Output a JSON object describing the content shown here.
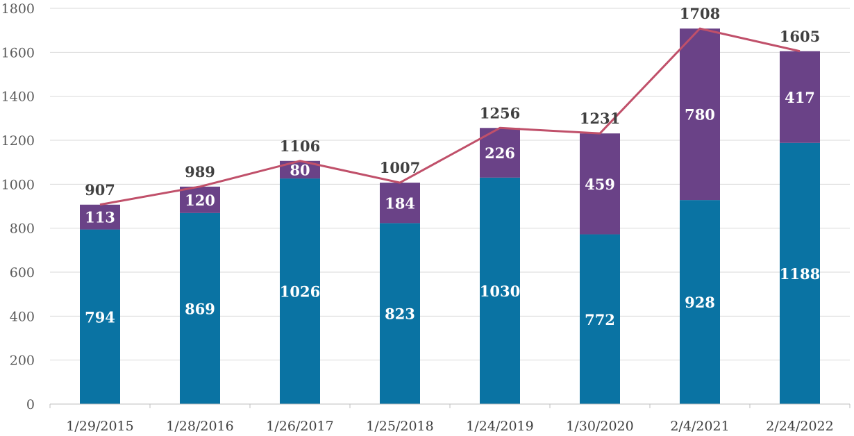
{
  "chart_data": {
    "type": "bar",
    "stacked": true,
    "title": "",
    "xlabel": "",
    "ylabel": "",
    "ylim": [
      0,
      1800
    ],
    "yticks": [
      0,
      200,
      400,
      600,
      800,
      1000,
      1200,
      1400,
      1600,
      1800
    ],
    "grid": true,
    "categories": [
      "1/29/2015",
      "1/28/2016",
      "1/26/2017",
      "1/25/2018",
      "1/24/2019",
      "1/30/2020",
      "2/4/2021",
      "2/24/2022"
    ],
    "series": [
      {
        "name": "Series 1",
        "type": "bar",
        "color": "#0a73a3",
        "values": [
          794,
          869,
          1026,
          823,
          1030,
          772,
          928,
          1188
        ]
      },
      {
        "name": "Series 2",
        "type": "bar",
        "color": "#6a4287",
        "values": [
          113,
          120,
          80,
          184,
          226,
          459,
          780,
          417
        ]
      },
      {
        "name": "Total",
        "type": "line",
        "color": "#c0506a",
        "values": [
          907,
          989,
          1106,
          1007,
          1256,
          1231,
          1708,
          1605
        ]
      }
    ]
  }
}
